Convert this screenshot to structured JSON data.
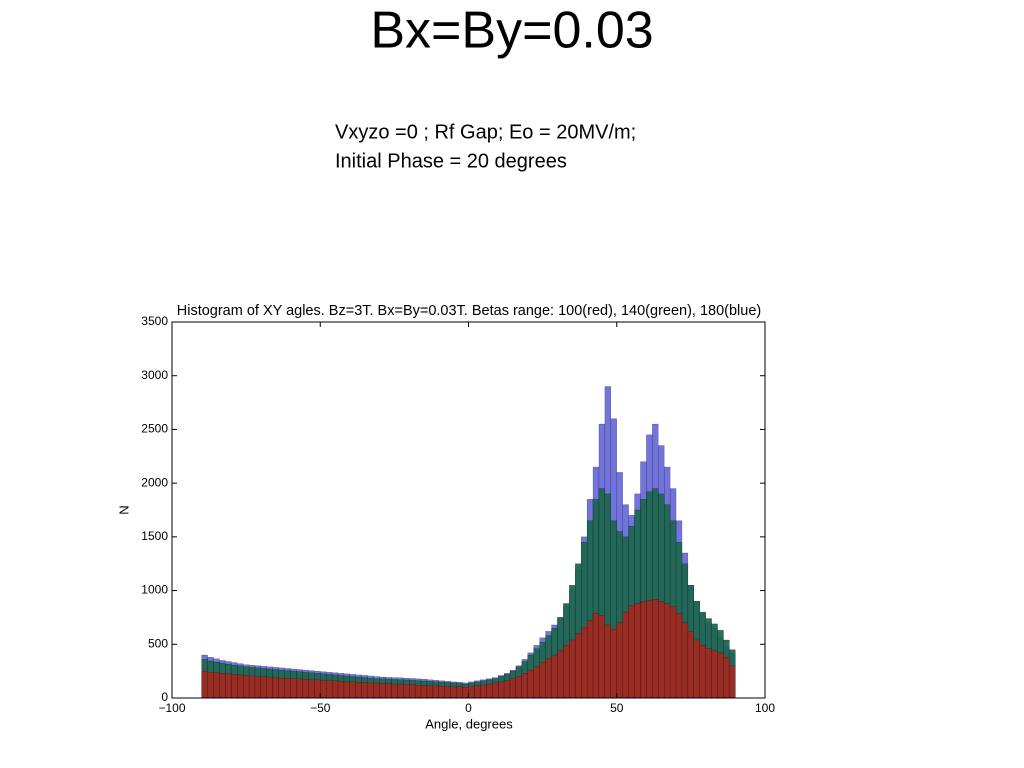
{
  "slide": {
    "title": "Bx=By=0.03",
    "lines": [
      "Vxyzo =0 ;  Rf Gap;  Eo = 20MV/m;",
      "Initial Phase = 20 degrees"
    ]
  },
  "chart_data": {
    "type": "histogram",
    "title": "Histogram of XY agles. Bz=3T. Bx=By=0.03T. Betas range: 100(red), 140(green), 180(blue)",
    "xlabel": "Angle, degrees",
    "ylabel": "N",
    "bins": [
      -90,
      -88,
      -86,
      -84,
      -82,
      -80,
      -78,
      -76,
      -74,
      -72,
      -70,
      -68,
      -66,
      -64,
      -62,
      -60,
      -58,
      -56,
      -54,
      -52,
      -50,
      -48,
      -46,
      -44,
      -42,
      -40,
      -38,
      -36,
      -34,
      -32,
      -30,
      -28,
      -26,
      -24,
      -22,
      -20,
      -18,
      -16,
      -14,
      -12,
      -10,
      -8,
      -6,
      -4,
      -2,
      0,
      2,
      4,
      6,
      8,
      10,
      12,
      14,
      16,
      18,
      20,
      22,
      24,
      26,
      28,
      30,
      32,
      34,
      36,
      38,
      40,
      42,
      44,
      46,
      48,
      50,
      52,
      54,
      56,
      58,
      60,
      62,
      64,
      66,
      68,
      70,
      72,
      74,
      76,
      78,
      80,
      82,
      84,
      86,
      88,
      90
    ],
    "series": [
      {
        "color": "#5b5bd6",
        "values": [
          400,
          380,
          365,
          350,
          340,
          330,
          320,
          310,
          305,
          300,
          295,
          290,
          285,
          280,
          275,
          270,
          265,
          260,
          255,
          250,
          245,
          240,
          235,
          230,
          225,
          220,
          215,
          210,
          205,
          200,
          195,
          192,
          190,
          188,
          185,
          182,
          178,
          175,
          170,
          165,
          160,
          155,
          150,
          147,
          140,
          150,
          160,
          170,
          180,
          190,
          210,
          230,
          260,
          300,
          360,
          420,
          490,
          560,
          620,
          680,
          750,
          850,
          1000,
          1200,
          1500,
          1850,
          2150,
          2550,
          2900,
          2600,
          2100,
          1800,
          1700,
          1900,
          2200,
          2450,
          2550,
          2350,
          2150,
          1950,
          1650,
          1350,
          1050,
          900,
          780,
          700,
          650,
          560,
          480,
          420
        ]
      },
      {
        "color": "#1f6650",
        "values": [
          360,
          345,
          335,
          325,
          315,
          305,
          300,
          290,
          285,
          280,
          275,
          270,
          265,
          260,
          255,
          250,
          245,
          240,
          235,
          230,
          225,
          220,
          215,
          210,
          205,
          200,
          195,
          190,
          185,
          180,
          178,
          175,
          172,
          170,
          168,
          165,
          160,
          158,
          155,
          150,
          148,
          145,
          140,
          135,
          130,
          140,
          150,
          160,
          170,
          180,
          200,
          220,
          250,
          290,
          340,
          400,
          460,
          520,
          580,
          650,
          750,
          880,
          1050,
          1250,
          1450,
          1650,
          1850,
          1950,
          1900,
          1650,
          1550,
          1500,
          1600,
          1750,
          1850,
          1920,
          1950,
          1900,
          1800,
          1650,
          1450,
          1250,
          1050,
          900,
          800,
          740,
          690,
          630,
          540,
          450
        ]
      },
      {
        "color": "#a02a22",
        "values": [
          250,
          240,
          235,
          230,
          225,
          220,
          215,
          210,
          205,
          200,
          200,
          195,
          190,
          185,
          185,
          180,
          180,
          175,
          170,
          170,
          165,
          160,
          160,
          155,
          150,
          150,
          145,
          145,
          140,
          140,
          135,
          135,
          130,
          130,
          125,
          125,
          120,
          120,
          115,
          115,
          110,
          110,
          105,
          105,
          100,
          110,
          115,
          120,
          130,
          140,
          150,
          160,
          180,
          200,
          230,
          260,
          290,
          330,
          370,
          400,
          440,
          490,
          540,
          600,
          660,
          720,
          790,
          770,
          680,
          640,
          700,
          800,
          860,
          880,
          900,
          910,
          920,
          900,
          880,
          850,
          790,
          700,
          620,
          540,
          490,
          460,
          440,
          420,
          380,
          300
        ]
      }
    ],
    "xlim": [
      -100,
      100
    ],
    "xticks": [
      {
        "value": -100,
        "label": "−100"
      },
      {
        "value": -50,
        "label": "−50"
      },
      0,
      50,
      100
    ],
    "ylim": [
      0,
      3500
    ],
    "yticks": [
      0,
      500,
      1000,
      1500,
      2000,
      2500,
      3000,
      3500
    ]
  }
}
